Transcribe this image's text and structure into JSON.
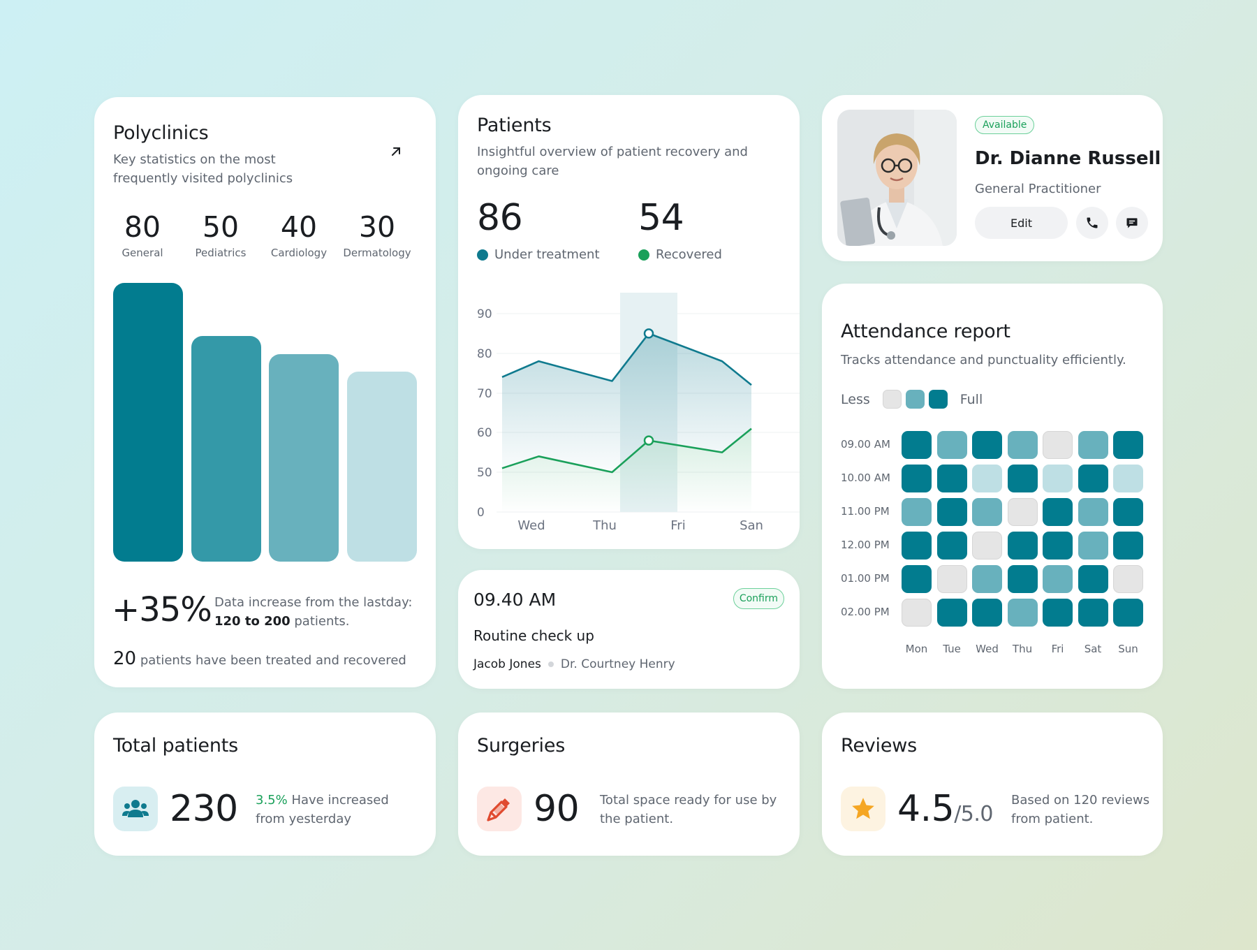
{
  "colors": {
    "teal_dark": "#027c8f",
    "teal_mid": "#3499a8",
    "teal_light": "#68b1bd",
    "teal_pale": "#bedfe4",
    "gray_cell": "#e5e5e5",
    "green": "#1aa05a"
  },
  "polyclinics": {
    "title": "Polyclinics",
    "subtitle": "Key statistics on the most frequently visited polyclinics",
    "icon": "arrow-up-right-icon",
    "stats": [
      {
        "value": "80",
        "label": "General"
      },
      {
        "value": "50",
        "label": "Pediatrics"
      },
      {
        "value": "40",
        "label": "Cardiology"
      },
      {
        "value": "30",
        "label": "Dermatology"
      }
    ],
    "increase": "+35%",
    "increase_text": "Data increase from the lastday:",
    "range_bold": "120 to 200",
    "range_suffix": " patients.",
    "treated_count": "20",
    "treated_text": " patients have been treated and recovered"
  },
  "patients": {
    "title": "Patients",
    "subtitle": "Insightful overview of patient recovery and ongoing care",
    "under_treatment_value": "86",
    "under_treatment_label": "Under treatment",
    "recovered_value": "54",
    "recovered_label": "Recovered"
  },
  "chart_data": {
    "type": "line",
    "title": "",
    "y_ticks": [
      "90",
      "80",
      "70",
      "60",
      "50",
      "0"
    ],
    "x_ticks": [
      "Wed",
      "Thu",
      "Fri",
      "San"
    ],
    "highlight_category": "Fri",
    "series": [
      {
        "name": "Under treatment",
        "color": "#0f7a8e",
        "points": [
          [
            0.0,
            74
          ],
          [
            0.5,
            78
          ],
          [
            1.5,
            73
          ],
          [
            2.0,
            85
          ],
          [
            3.0,
            78
          ],
          [
            3.4,
            72
          ]
        ]
      },
      {
        "name": "Recovered",
        "color": "#1aa05a",
        "points": [
          [
            0.0,
            51
          ],
          [
            0.5,
            54
          ],
          [
            1.5,
            50
          ],
          [
            2.0,
            58
          ],
          [
            3.0,
            55
          ],
          [
            3.4,
            61
          ]
        ]
      }
    ]
  },
  "appointment": {
    "time": "09.40 AM",
    "status": "Confirm",
    "task": "Routine check up",
    "patient": "Jacob Jones",
    "doctor": "Dr. Courtney Henry"
  },
  "doctor": {
    "status": "Available",
    "name": "Dr. Dianne Russell",
    "role": "General Practitioner",
    "edit_label": "Edit",
    "call_icon": "phone-icon",
    "message_icon": "message-icon"
  },
  "attendance": {
    "title": "Attendance report",
    "subtitle": "Tracks attendance and punctuality efficiently.",
    "less_label": "Less",
    "full_label": "Full",
    "times": [
      "09.00 AM",
      "10.00 AM",
      "11.00 PM",
      "12.00 PM",
      "01.00 PM",
      "02.00 PM"
    ],
    "days": [
      "Mon",
      "Tue",
      "Wed",
      "Thu",
      "Fri",
      "Sat",
      "Sun"
    ],
    "levels": [
      [
        3,
        2,
        3,
        2,
        0,
        2,
        3
      ],
      [
        3,
        3,
        1,
        3,
        1,
        3,
        1
      ],
      [
        2,
        3,
        2,
        0,
        3,
        2,
        3
      ],
      [
        3,
        3,
        0,
        3,
        3,
        2,
        3
      ],
      [
        3,
        0,
        2,
        3,
        2,
        3,
        0
      ],
      [
        0,
        3,
        3,
        2,
        3,
        3,
        3
      ]
    ]
  },
  "total_patients": {
    "title": "Total patients",
    "value": "230",
    "pct": "3.5%",
    "text": " Have increased from yesterday",
    "icon": "users-icon"
  },
  "surgeries": {
    "title": "Surgeries",
    "value": "90",
    "text": "Total space ready for use by the patient.",
    "icon": "syringe-icon"
  },
  "reviews": {
    "title": "Reviews",
    "value": "4.5",
    "denominator": "/5.0",
    "text": "Based on 120 reviews from patient.",
    "icon": "star-icon"
  }
}
